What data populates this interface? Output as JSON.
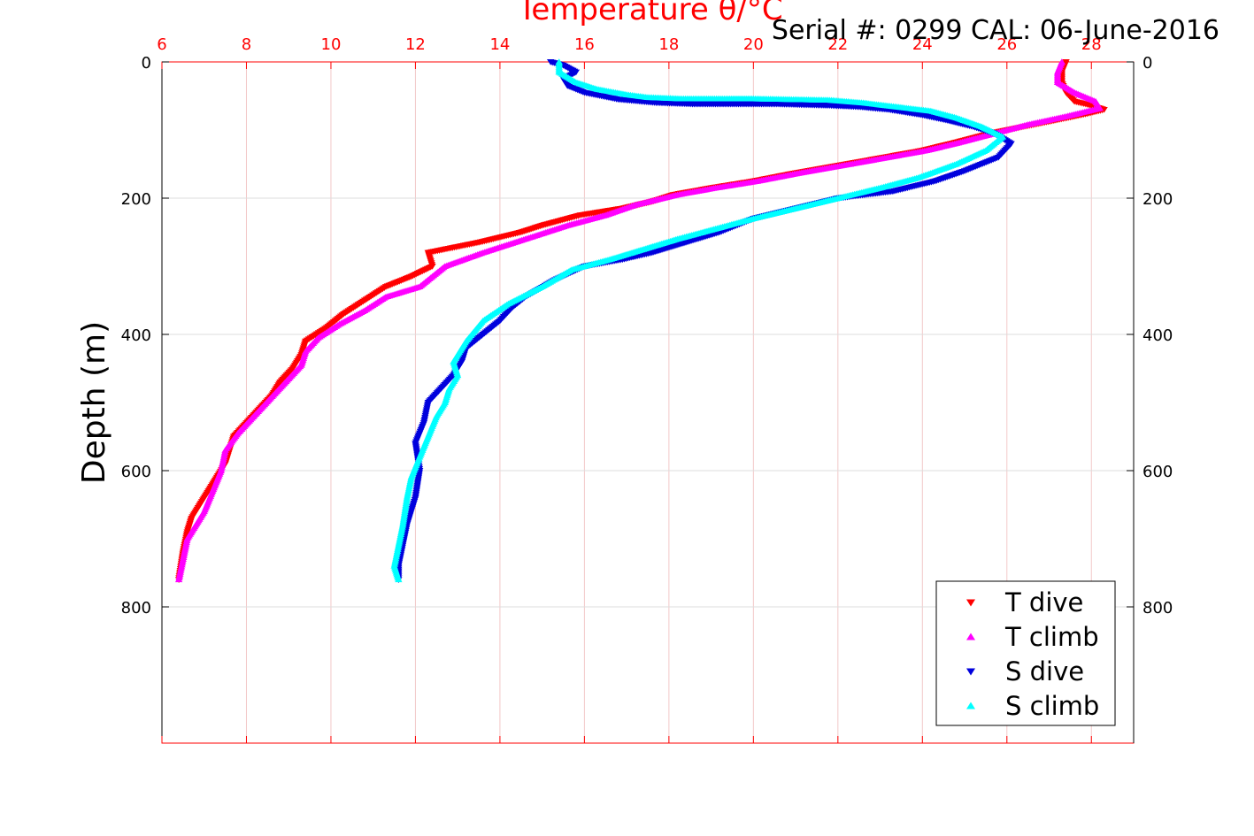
{
  "chart_data": {
    "type": "scatter",
    "title": "Temperature θ/°C",
    "title_color": "#ff0000",
    "subtitle": "Serial #: 0299 CAL: 06-June-2016",
    "xlabel": "Temperature θ/°C",
    "ylabel": "Depth (m)",
    "xlim": [
      6,
      29
    ],
    "ylim": [
      0,
      1000
    ],
    "y_reversed": true,
    "x_ticks": [
      "6",
      "8",
      "10",
      "12",
      "14",
      "16",
      "18",
      "20",
      "22",
      "24",
      "26",
      "28"
    ],
    "y_ticks": [
      "0",
      "200",
      "400",
      "600",
      "800"
    ],
    "grid": true,
    "legend_position": "bottom-right",
    "series": [
      {
        "name": "T dive",
        "color": "#ff0000",
        "marker": "triangle-down",
        "x": [
          27.4,
          27.3,
          27.3,
          27.4,
          27.6,
          28.0,
          28.3,
          27.9,
          27.2,
          26.4,
          25.6,
          24.8,
          24.0,
          23.1,
          22.2,
          21.0,
          20.0,
          19.0,
          18.1,
          17.6,
          16.9,
          15.9,
          15.0,
          14.5,
          13.5,
          12.3,
          12.4,
          11.9,
          11.3,
          10.8,
          10.3,
          9.9,
          9.4,
          9.3,
          9.1,
          8.8,
          8.6,
          8.3,
          8.0,
          7.7,
          7.6,
          7.5,
          7.3,
          7.1,
          6.9,
          6.7,
          6.6,
          6.5,
          6.4
        ],
        "y": [
          0,
          15,
          30,
          45,
          58,
          64,
          70,
          76,
          85,
          95,
          105,
          118,
          130,
          140,
          150,
          163,
          175,
          185,
          195,
          205,
          215,
          225,
          240,
          250,
          265,
          280,
          300,
          315,
          330,
          350,
          370,
          390,
          410,
          430,
          450,
          470,
          490,
          510,
          530,
          550,
          570,
          590,
          610,
          630,
          650,
          670,
          690,
          720,
          760
        ]
      },
      {
        "name": "T climb",
        "color": "#ff00ff",
        "marker": "triangle-up",
        "x": [
          27.3,
          27.2,
          27.2,
          27.6,
          28.1,
          28.2,
          27.4,
          26.5,
          25.7,
          24.9,
          24.1,
          23.2,
          22.3,
          21.1,
          20.1,
          19.1,
          18.2,
          17.2,
          16.5,
          15.6,
          14.6,
          13.6,
          12.7,
          12.4,
          12.1,
          11.3,
          10.8,
          10.2,
          9.7,
          9.4,
          9.3,
          9.0,
          8.7,
          8.4,
          8.1,
          7.8,
          7.5,
          7.4,
          7.2,
          7.0,
          6.8,
          6.6,
          6.5,
          6.4
        ],
        "y": [
          0,
          15,
          30,
          45,
          58,
          68,
          80,
          92,
          105,
          118,
          130,
          140,
          150,
          163,
          175,
          185,
          195,
          210,
          225,
          240,
          260,
          280,
          300,
          315,
          330,
          345,
          365,
          385,
          405,
          425,
          445,
          465,
          485,
          505,
          525,
          545,
          570,
          600,
          630,
          660,
          680,
          700,
          730,
          760
        ]
      },
      {
        "name": "S dive",
        "color": "#0000dd",
        "marker": "triangle-down",
        "x": [
          15.2,
          15.5,
          15.8,
          15.5,
          15.6,
          16.0,
          16.8,
          17.7,
          18.6,
          19.6,
          20.6,
          21.8,
          22.5,
          23.2,
          24.0,
          24.6,
          25.2,
          25.7,
          26.1,
          25.8,
          25.0,
          24.3,
          23.3,
          22.0,
          21.0,
          20.0,
          19.2,
          18.4,
          17.6,
          16.9,
          16.0,
          15.3,
          14.6,
          14.3,
          14.0,
          13.6,
          13.2,
          13.1,
          12.9,
          12.6,
          12.3,
          12.2,
          12.0,
          12.1,
          12.0,
          11.8,
          11.7,
          11.6,
          11.6
        ],
        "y": [
          0,
          5,
          15,
          25,
          35,
          45,
          55,
          60,
          62,
          62,
          62,
          64,
          66,
          70,
          78,
          86,
          95,
          105,
          120,
          140,
          160,
          175,
          190,
          200,
          215,
          230,
          250,
          265,
          280,
          290,
          300,
          320,
          345,
          360,
          380,
          400,
          420,
          440,
          460,
          480,
          500,
          530,
          560,
          600,
          640,
          680,
          710,
          740,
          760
        ]
      },
      {
        "name": "S climb",
        "color": "#00ffff",
        "marker": "triangle-up",
        "x": [
          15.4,
          15.4,
          15.8,
          16.3,
          17.0,
          17.5,
          18.3,
          19.4,
          20.0,
          21.8,
          22.6,
          23.4,
          24.2,
          24.8,
          25.4,
          25.9,
          25.5,
          24.8,
          23.9,
          23.0,
          22.0,
          21.0,
          20.0,
          19.1,
          18.2,
          17.4,
          16.6,
          15.7,
          15.0,
          14.2,
          13.6,
          13.2,
          12.9,
          13.0,
          12.8,
          12.7,
          12.5,
          12.3,
          12.1,
          11.9,
          11.8,
          11.7,
          11.6,
          11.5,
          11.6
        ],
        "y": [
          0,
          15,
          30,
          40,
          48,
          52,
          54,
          54,
          54,
          56,
          60,
          66,
          72,
          82,
          95,
          110,
          130,
          150,
          170,
          185,
          200,
          215,
          230,
          245,
          260,
          275,
          290,
          305,
          330,
          355,
          380,
          410,
          440,
          460,
          480,
          500,
          520,
          550,
          580,
          610,
          640,
          680,
          710,
          740,
          760
        ]
      }
    ]
  }
}
